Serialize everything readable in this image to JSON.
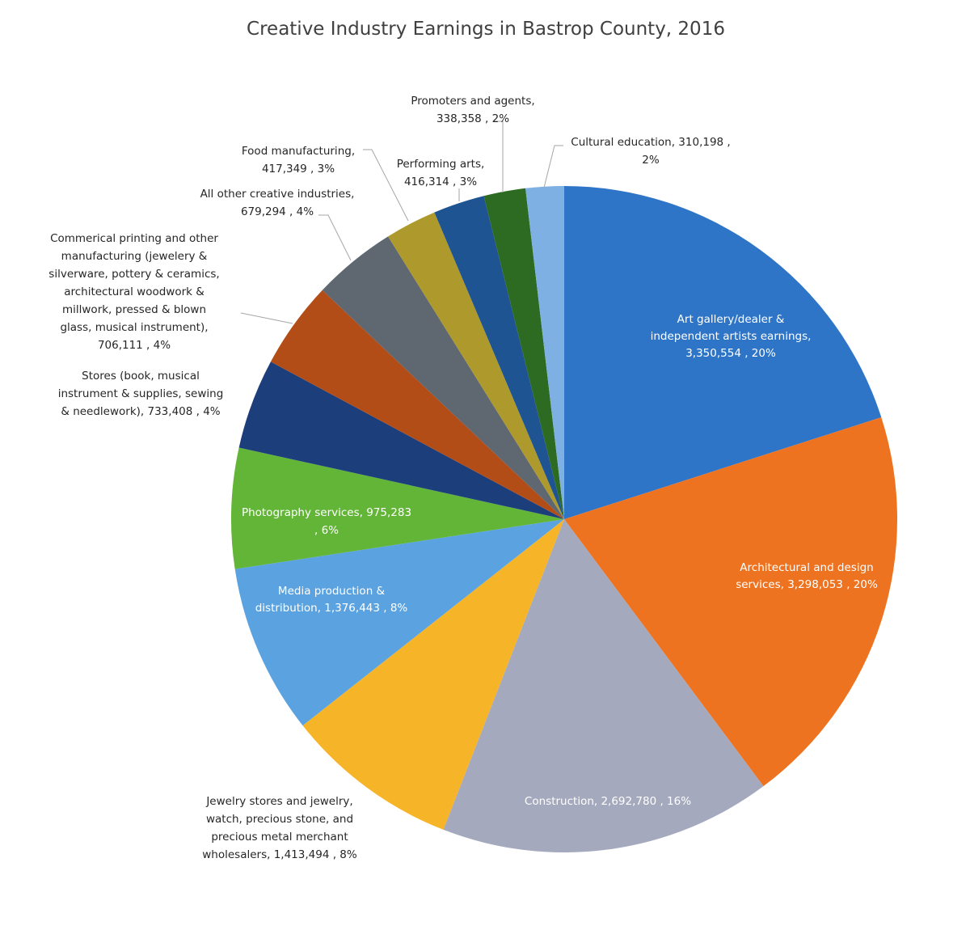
{
  "chart_data": {
    "type": "pie",
    "title": "Creative Industry Earnings in Bastrop County, 2016",
    "slices": [
      {
        "name": "Art gallery/dealer & independent artists earnings",
        "value": 3350554,
        "percent": "20%",
        "color": "#2e75c8",
        "label_lines": [
          "Art gallery/dealer &",
          "independent artists earnings,",
          "3,350,554 , 20%"
        ]
      },
      {
        "name": "Architectural and design services",
        "value": 3298053,
        "percent": "20%",
        "color": "#ee7320",
        "label_lines": [
          "Architectural and design",
          "services, 3,298,053 , 20%"
        ]
      },
      {
        "name": "Construction",
        "value": 2692780,
        "percent": "16%",
        "color": "#a5a9bd",
        "label_lines": [
          "Construction, 2,692,780 , 16%"
        ]
      },
      {
        "name": "Jewelry stores and jewelry, watch, precious stone, and precious metal merchant wholesalers",
        "value": 1413494,
        "percent": "8%",
        "color": "#f6b429",
        "label_lines": [
          "Jewelry stores and jewelry,",
          "watch, precious stone, and",
          "precious metal merchant",
          "wholesalers, 1,413,494 , 8%"
        ]
      },
      {
        "name": "Media production & distribution",
        "value": 1376443,
        "percent": "8%",
        "color": "#5ba3e0",
        "label_lines": [
          "Media production &",
          "distribution, 1,376,443 , 8%"
        ]
      },
      {
        "name": "Photography services",
        "value": 975283,
        "percent": "6%",
        "color": "#62b536",
        "label_lines": [
          "Photography services, 975,283",
          ", 6%"
        ]
      },
      {
        "name": "Stores (book, musical instrument & supplies, sewing & needlework)",
        "value": 733408,
        "percent": "4%",
        "color": "#1c3f7c",
        "label_lines": [
          "Stores  (book, musical",
          "instrument & supplies, sewing",
          "& needlework), 733,408 , 4%"
        ]
      },
      {
        "name": "Commerical printing and other manufacturing (jewelery & silverware, pottery & ceramics, architectural woodwork & millwork, pressed & blown glass, musical instrument)",
        "value": 706111,
        "percent": "4%",
        "color": "#b34d17",
        "label_lines": [
          "Commerical printing and other",
          "manufacturing (jewelery &",
          "silverware, pottery & ceramics,",
          "architectural woodwork &",
          "millwork, pressed & blown",
          "glass, musical instrument),",
          "706,111 , 4%"
        ]
      },
      {
        "name": "All other creative industries",
        "value": 679294,
        "percent": "4%",
        "color": "#5f6770",
        "label_lines": [
          "All other creative industries,",
          "679,294 , 4%"
        ]
      },
      {
        "name": "Food manufacturing",
        "value": 417349,
        "percent": "3%",
        "color": "#ae9a2c",
        "label_lines": [
          "Food manufacturing,",
          "417,349 , 3%"
        ]
      },
      {
        "name": "Performing arts",
        "value": 416314,
        "percent": "3%",
        "color": "#1e5491",
        "label_lines": [
          "Performing arts,",
          "416,314 , 3%"
        ]
      },
      {
        "name": "Promoters and agents",
        "value": 338358,
        "percent": "2%",
        "color": "#2d6b22",
        "label_lines": [
          "Promoters and agents,",
          "338,358 , 2%"
        ]
      },
      {
        "name": "Cultural education",
        "value": 310198,
        "percent": "2%",
        "color": "#7fb0e4",
        "label_lines": [
          "Cultural education,  310,198 ,",
          "2%"
        ]
      }
    ],
    "legend": "none"
  }
}
